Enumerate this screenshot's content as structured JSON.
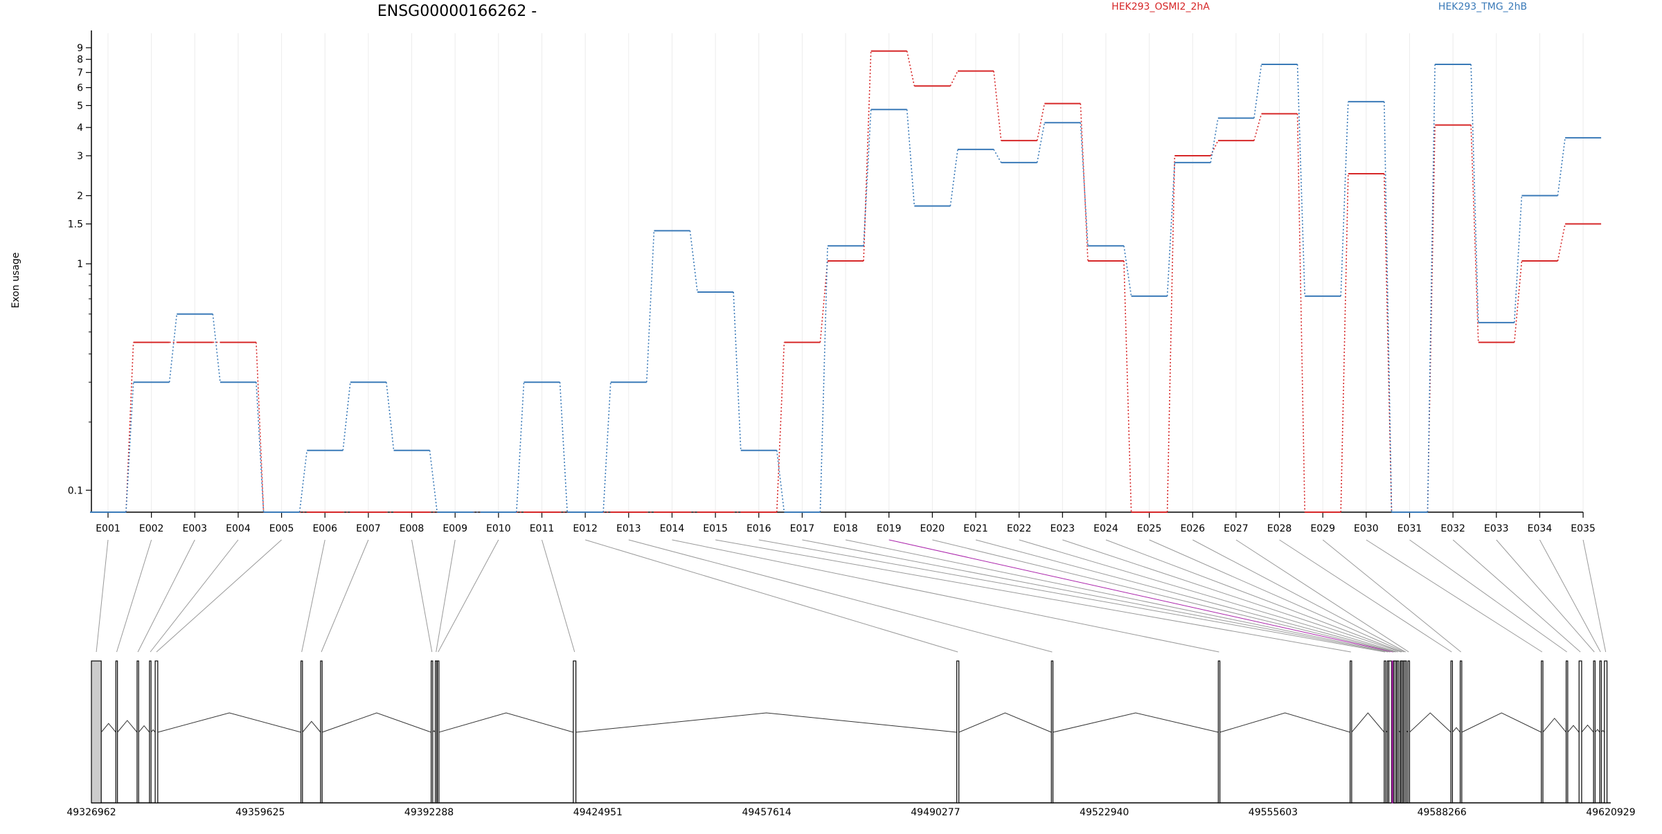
{
  "chart_data": {
    "type": "line",
    "title": "ENSG00000166262 -",
    "ylabel": "Exon usage",
    "yscale": "log",
    "grid": true,
    "legend_placement": "top",
    "ylim": [
      0.08,
      10
    ],
    "yticks": [
      {
        "value": 0.1,
        "label": "0.1"
      },
      {
        "value": 1,
        "label": "1"
      },
      {
        "value": 1.5,
        "label": "1.5"
      },
      {
        "value": 2,
        "label": "2"
      },
      {
        "value": 3,
        "label": "3"
      },
      {
        "value": 4,
        "label": "4"
      },
      {
        "value": 5,
        "label": "5"
      },
      {
        "value": 6,
        "label": "6"
      },
      {
        "value": 7,
        "label": "7"
      },
      {
        "value": 8,
        "label": "8"
      },
      {
        "value": 9,
        "label": "9"
      }
    ],
    "categories": [
      "E001",
      "E002",
      "E003",
      "E004",
      "E005",
      "E006",
      "E007",
      "E008",
      "E009",
      "E010",
      "E011",
      "E012",
      "E013",
      "E014",
      "E015",
      "E016",
      "E017",
      "E018",
      "E019",
      "E020",
      "E021",
      "E022",
      "E023",
      "E024",
      "E025",
      "E026",
      "E027",
      "E028",
      "E029",
      "E030",
      "E031",
      "E032",
      "E033",
      "E034",
      "E035"
    ],
    "series": [
      {
        "name": "HEK293_OSMI2_2hA",
        "color": "#d62728",
        "values": [
          0.08,
          0.45,
          0.45,
          0.45,
          0.08,
          0.08,
          0.08,
          0.08,
          0.08,
          0.08,
          0.08,
          0.08,
          0.08,
          0.08,
          0.08,
          0.08,
          0.45,
          1.03,
          8.7,
          6.1,
          7.1,
          3.5,
          5.1,
          1.03,
          0.08,
          3.0,
          3.5,
          4.6,
          0.08,
          2.5,
          0.08,
          4.1,
          0.45,
          1.03,
          1.5
        ]
      },
      {
        "name": "HEK293_TMG_2hB",
        "color": "#3a7ab8",
        "values": [
          0.08,
          0.3,
          0.6,
          0.3,
          0.08,
          0.15,
          0.3,
          0.15,
          0.08,
          0.08,
          0.3,
          0.08,
          0.3,
          1.4,
          0.75,
          0.15,
          0.08,
          1.2,
          4.8,
          1.8,
          3.2,
          2.8,
          4.2,
          1.2,
          0.72,
          2.8,
          4.4,
          7.6,
          0.72,
          5.2,
          0.08,
          7.6,
          0.55,
          2.0,
          3.6
        ]
      }
    ],
    "gene_model": {
      "coordinate_labels": [
        "49326962",
        "49359625",
        "49392288",
        "49424951",
        "49457614",
        "49490277",
        "49522940",
        "49555603",
        "49588266",
        "49620929"
      ],
      "genomic_range": [
        49326962,
        49620929
      ],
      "exon_starts": [
        49326962,
        49331700,
        49335800,
        49338200,
        49339300,
        49367500,
        49371300,
        49392700,
        49393500,
        49393900,
        49420200,
        49494400,
        49512700,
        49545000,
        49570500,
        49577100,
        49577700,
        49578000,
        49578600,
        49578900,
        49579200,
        49579600,
        49580200,
        49580400,
        49580800,
        49581100,
        49581700,
        49590000,
        49591800,
        49607500,
        49612300,
        49614800,
        49617600,
        49618800,
        49619700
      ],
      "exon_widths": [
        1900,
        300,
        300,
        300,
        500,
        300,
        300,
        300,
        300,
        300,
        500,
        400,
        300,
        300,
        300,
        300,
        200,
        500,
        400,
        300,
        300,
        300,
        300,
        300,
        300,
        300,
        300,
        300,
        300,
        300,
        300,
        500,
        300,
        300,
        500
      ],
      "highlight_exon": "E019",
      "highlight_color": "#aa22aa"
    }
  }
}
